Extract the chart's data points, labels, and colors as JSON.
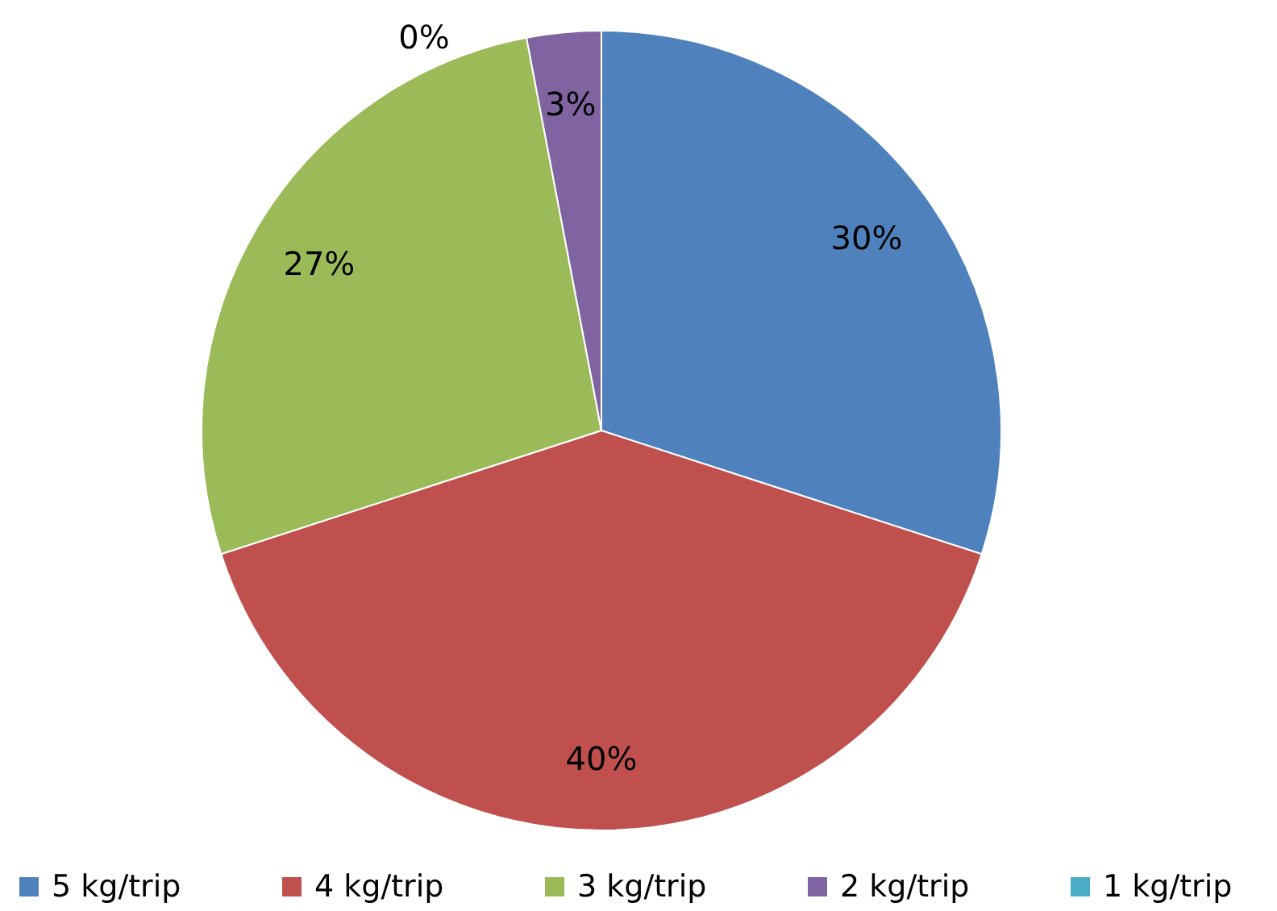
{
  "chart_data": {
    "type": "pie",
    "categories": [
      "5 kg/trip",
      "4 kg/trip",
      "3 kg/trip",
      "2 kg/trip",
      "1 kg/trip"
    ],
    "values": [
      30,
      40,
      27,
      3,
      0
    ],
    "colors": [
      "#4f81bd",
      "#c0504d",
      "#9bbb59",
      "#8064a2",
      "#4bacc6"
    ],
    "value_labels": [
      "30%",
      "40%",
      "27%",
      "3%",
      "0%"
    ],
    "legend": "bottom"
  }
}
